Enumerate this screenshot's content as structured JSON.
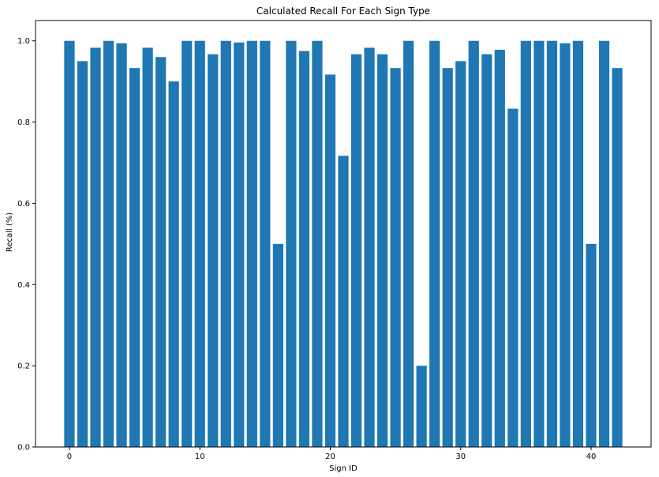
{
  "chart_data": {
    "type": "bar",
    "title": "Calculated Recall For Each Sign Type",
    "xlabel": "Sign ID",
    "ylabel": "Recall (%)",
    "x": [
      0,
      1,
      2,
      3,
      4,
      5,
      6,
      7,
      8,
      9,
      10,
      11,
      12,
      13,
      14,
      15,
      16,
      17,
      18,
      19,
      20,
      21,
      22,
      23,
      24,
      25,
      26,
      27,
      28,
      29,
      30,
      31,
      32,
      33,
      34,
      35,
      36,
      37,
      38,
      39,
      40,
      41,
      42
    ],
    "values": [
      1.0,
      0.95,
      0.983,
      1.0,
      0.994,
      0.933,
      0.983,
      0.96,
      0.9,
      1.0,
      1.0,
      0.967,
      1.0,
      0.996,
      1.0,
      1.0,
      0.5,
      1.0,
      0.975,
      1.0,
      0.917,
      0.717,
      0.967,
      0.983,
      0.967,
      0.933,
      1.0,
      0.2,
      1.0,
      0.933,
      0.95,
      1.0,
      0.967,
      0.978,
      0.833,
      1.0,
      1.0,
      1.0,
      0.994,
      1.0,
      0.5,
      1.0,
      0.933
    ],
    "xlim": [
      -2.6,
      44.6
    ],
    "ylim": [
      0,
      1.05
    ],
    "xticks": [
      0,
      10,
      20,
      30,
      40
    ],
    "xtick_labels": [
      "0",
      "10",
      "20",
      "30",
      "40"
    ],
    "yticks": [
      0.0,
      0.2,
      0.4,
      0.6,
      0.8,
      1.0
    ],
    "ytick_labels": [
      "0.0",
      "0.2",
      "0.4",
      "0.6",
      "0.8",
      "1.0"
    ],
    "bar_color": "#1f77b4",
    "grid": false,
    "legend": "none"
  }
}
